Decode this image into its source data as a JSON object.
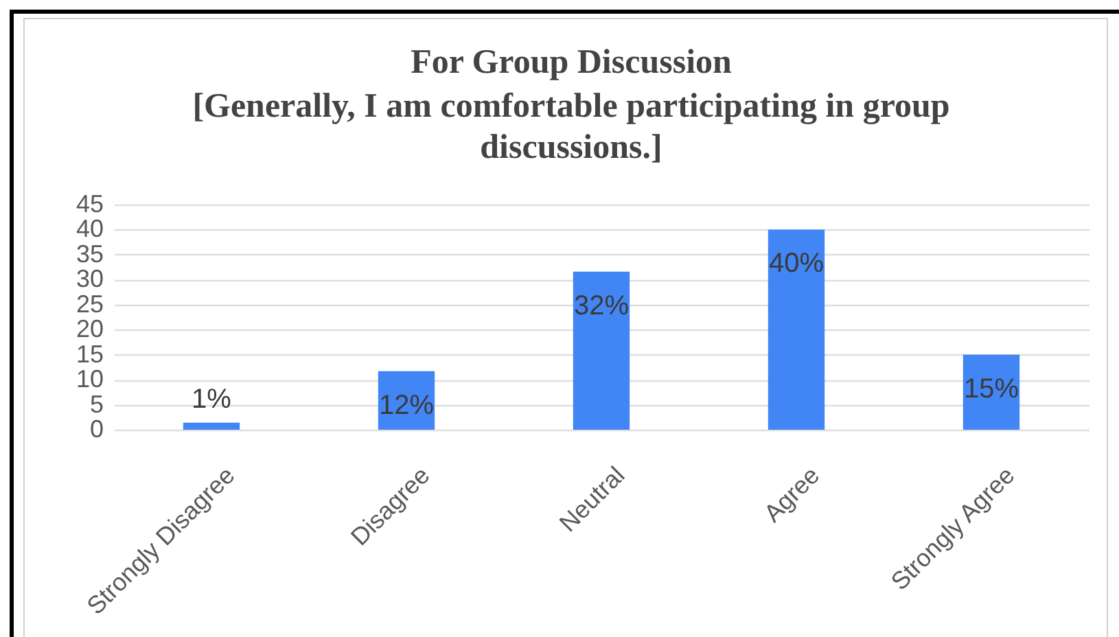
{
  "chart_data": {
    "type": "bar",
    "title": "For Group Discussion",
    "subtitle": "[Generally, I am comfortable participating in group discussions.]",
    "categories": [
      "Strongly Disagree",
      "Disagree",
      "Neutral",
      "Agree",
      "Strongly Agree"
    ],
    "values": [
      1.4,
      11.7,
      31.6,
      40,
      15
    ],
    "value_labels": [
      "1%",
      "12%",
      "32%",
      "40%",
      "15%"
    ],
    "color": "#4285f4",
    "ylim": [
      0,
      45
    ],
    "yticks": [
      0,
      5,
      10,
      15,
      20,
      25,
      30,
      35,
      40,
      45
    ],
    "grid": "y"
  }
}
